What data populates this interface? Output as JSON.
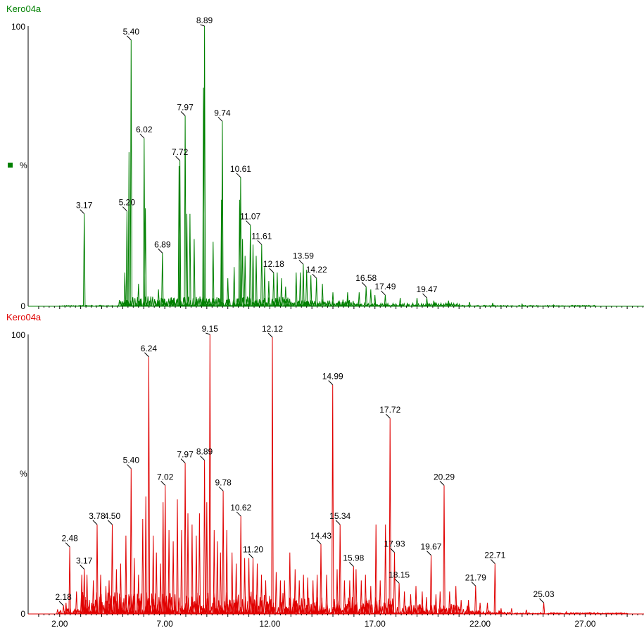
{
  "chart_data": [
    {
      "type": "line",
      "title": "Kero04a",
      "color": "#008000",
      "ylabel": "%",
      "y_ticks": [
        "100",
        "0"
      ],
      "ylim": [
        0,
        100
      ],
      "xlim": [
        0.5,
        29.8
      ],
      "peaks": [
        {
          "x": 3.17,
          "y": 33,
          "label": "3.17"
        },
        {
          "x": 5.2,
          "y": 34,
          "label": "5.20"
        },
        {
          "x": 5.4,
          "y": 95,
          "label": "5.40"
        },
        {
          "x": 6.02,
          "y": 60,
          "label": "6.02"
        },
        {
          "x": 6.89,
          "y": 19,
          "label": "6.89"
        },
        {
          "x": 7.72,
          "y": 52,
          "label": "7.72"
        },
        {
          "x": 7.97,
          "y": 68,
          "label": "7.97"
        },
        {
          "x": 8.89,
          "y": 100,
          "label": "8.89"
        },
        {
          "x": 9.74,
          "y": 66,
          "label": "9.74"
        },
        {
          "x": 10.61,
          "y": 46,
          "label": "10.61"
        },
        {
          "x": 11.07,
          "y": 29,
          "label": "11.07"
        },
        {
          "x": 11.61,
          "y": 22,
          "label": "11.61"
        },
        {
          "x": 12.18,
          "y": 12,
          "label": "12.18"
        },
        {
          "x": 13.59,
          "y": 15,
          "label": "13.59"
        },
        {
          "x": 14.22,
          "y": 10,
          "label": "14.22"
        },
        {
          "x": 16.58,
          "y": 7,
          "label": "16.58"
        },
        {
          "x": 17.49,
          "y": 4,
          "label": "17.49"
        },
        {
          "x": 19.47,
          "y": 3,
          "label": "19.47"
        }
      ],
      "minor_peaks": [
        {
          "x": 5.1,
          "y": 12
        },
        {
          "x": 5.3,
          "y": 55
        },
        {
          "x": 5.75,
          "y": 8
        },
        {
          "x": 6.08,
          "y": 35
        },
        {
          "x": 6.7,
          "y": 6
        },
        {
          "x": 7.68,
          "y": 50
        },
        {
          "x": 8.05,
          "y": 33
        },
        {
          "x": 8.2,
          "y": 33
        },
        {
          "x": 8.4,
          "y": 24
        },
        {
          "x": 8.84,
          "y": 78
        },
        {
          "x": 9.3,
          "y": 23
        },
        {
          "x": 9.7,
          "y": 38
        },
        {
          "x": 10.0,
          "y": 10
        },
        {
          "x": 10.3,
          "y": 14
        },
        {
          "x": 10.56,
          "y": 38
        },
        {
          "x": 10.7,
          "y": 24
        },
        {
          "x": 10.82,
          "y": 18
        },
        {
          "x": 11.2,
          "y": 22
        },
        {
          "x": 11.35,
          "y": 18
        },
        {
          "x": 11.75,
          "y": 14
        },
        {
          "x": 11.95,
          "y": 9
        },
        {
          "x": 12.35,
          "y": 12
        },
        {
          "x": 12.55,
          "y": 10
        },
        {
          "x": 12.75,
          "y": 7
        },
        {
          "x": 13.25,
          "y": 12
        },
        {
          "x": 13.45,
          "y": 12
        },
        {
          "x": 13.75,
          "y": 13
        },
        {
          "x": 13.95,
          "y": 11
        },
        {
          "x": 14.5,
          "y": 8
        },
        {
          "x": 15.0,
          "y": 5
        },
        {
          "x": 15.7,
          "y": 5
        },
        {
          "x": 16.25,
          "y": 5
        },
        {
          "x": 16.8,
          "y": 6
        },
        {
          "x": 17.0,
          "y": 4
        },
        {
          "x": 18.2,
          "y": 3
        },
        {
          "x": 19.0,
          "y": 3
        },
        {
          "x": 19.8,
          "y": 2
        },
        {
          "x": 20.5,
          "y": 2
        },
        {
          "x": 21.5,
          "y": 1.5
        },
        {
          "x": 22.6,
          "y": 1.2
        },
        {
          "x": 24.0,
          "y": 0.8
        },
        {
          "x": 25.5,
          "y": 0.5
        }
      ]
    },
    {
      "type": "line",
      "title": "Kero04a",
      "color": "#e00000",
      "ylabel": "%",
      "y_ticks": [
        "100",
        "0"
      ],
      "ylim": [
        0,
        100
      ],
      "xlim": [
        0.5,
        29.8
      ],
      "x_ticks": [
        "2.00",
        "7.00",
        "12.00",
        "17.00",
        "22.00",
        "27.00"
      ],
      "x_tick_values": [
        2,
        7,
        12,
        17,
        22,
        27
      ],
      "peaks": [
        {
          "x": 2.18,
          "y": 3,
          "label": "2.18"
        },
        {
          "x": 2.48,
          "y": 24,
          "label": "2.48"
        },
        {
          "x": 3.17,
          "y": 16,
          "label": "3.17"
        },
        {
          "x": 3.78,
          "y": 32,
          "label": "3.78"
        },
        {
          "x": 4.5,
          "y": 32,
          "label": "4.50"
        },
        {
          "x": 5.4,
          "y": 52,
          "label": "5.40"
        },
        {
          "x": 6.24,
          "y": 92,
          "label": "6.24"
        },
        {
          "x": 7.02,
          "y": 46,
          "label": "7.02"
        },
        {
          "x": 7.97,
          "y": 54,
          "label": "7.97"
        },
        {
          "x": 8.89,
          "y": 55,
          "label": "8.89"
        },
        {
          "x": 9.15,
          "y": 100,
          "label": "9.15"
        },
        {
          "x": 9.78,
          "y": 44,
          "label": "9.78"
        },
        {
          "x": 10.62,
          "y": 35,
          "label": "10.62"
        },
        {
          "x": 11.2,
          "y": 20,
          "label": "11.20"
        },
        {
          "x": 12.12,
          "y": 99,
          "label": "12.12"
        },
        {
          "x": 14.43,
          "y": 25,
          "label": "14.43"
        },
        {
          "x": 14.99,
          "y": 82,
          "label": "14.99"
        },
        {
          "x": 15.34,
          "y": 32,
          "label": "15.34"
        },
        {
          "x": 15.98,
          "y": 17,
          "label": "15.98"
        },
        {
          "x": 17.72,
          "y": 70,
          "label": "17.72"
        },
        {
          "x": 17.93,
          "y": 22,
          "label": "17.93"
        },
        {
          "x": 18.15,
          "y": 11,
          "label": "18.15"
        },
        {
          "x": 19.67,
          "y": 21,
          "label": "19.67"
        },
        {
          "x": 20.29,
          "y": 46,
          "label": "20.29"
        },
        {
          "x": 21.79,
          "y": 10,
          "label": "21.79"
        },
        {
          "x": 22.71,
          "y": 18,
          "label": "22.71"
        },
        {
          "x": 25.03,
          "y": 4,
          "label": "25.03"
        }
      ],
      "minor_peaks": [
        {
          "x": 2.3,
          "y": 4
        },
        {
          "x": 2.8,
          "y": 8
        },
        {
          "x": 3.05,
          "y": 14
        },
        {
          "x": 3.3,
          "y": 14
        },
        {
          "x": 3.6,
          "y": 12
        },
        {
          "x": 3.95,
          "y": 14
        },
        {
          "x": 4.2,
          "y": 10
        },
        {
          "x": 4.35,
          "y": 12
        },
        {
          "x": 4.7,
          "y": 16
        },
        {
          "x": 4.9,
          "y": 18
        },
        {
          "x": 5.15,
          "y": 28
        },
        {
          "x": 5.55,
          "y": 20
        },
        {
          "x": 5.75,
          "y": 14
        },
        {
          "x": 5.95,
          "y": 34
        },
        {
          "x": 6.1,
          "y": 42
        },
        {
          "x": 6.45,
          "y": 28
        },
        {
          "x": 6.6,
          "y": 22
        },
        {
          "x": 6.8,
          "y": 18
        },
        {
          "x": 6.92,
          "y": 40
        },
        {
          "x": 7.2,
          "y": 30
        },
        {
          "x": 7.4,
          "y": 26
        },
        {
          "x": 7.6,
          "y": 41
        },
        {
          "x": 7.8,
          "y": 30
        },
        {
          "x": 8.1,
          "y": 36
        },
        {
          "x": 8.3,
          "y": 32
        },
        {
          "x": 8.5,
          "y": 28
        },
        {
          "x": 8.65,
          "y": 36
        },
        {
          "x": 9.0,
          "y": 40
        },
        {
          "x": 9.35,
          "y": 30
        },
        {
          "x": 9.5,
          "y": 26
        },
        {
          "x": 9.65,
          "y": 22
        },
        {
          "x": 9.95,
          "y": 30
        },
        {
          "x": 10.2,
          "y": 22
        },
        {
          "x": 10.4,
          "y": 18
        },
        {
          "x": 10.8,
          "y": 20
        },
        {
          "x": 11.0,
          "y": 20
        },
        {
          "x": 11.4,
          "y": 18
        },
        {
          "x": 11.6,
          "y": 14
        },
        {
          "x": 11.8,
          "y": 12
        },
        {
          "x": 12.3,
          "y": 15
        },
        {
          "x": 12.5,
          "y": 12
        },
        {
          "x": 12.7,
          "y": 12
        },
        {
          "x": 12.95,
          "y": 22
        },
        {
          "x": 13.2,
          "y": 16
        },
        {
          "x": 13.4,
          "y": 12
        },
        {
          "x": 13.6,
          "y": 14
        },
        {
          "x": 13.8,
          "y": 13
        },
        {
          "x": 14.05,
          "y": 12
        },
        {
          "x": 14.25,
          "y": 14
        },
        {
          "x": 14.7,
          "y": 14
        },
        {
          "x": 15.2,
          "y": 16
        },
        {
          "x": 15.55,
          "y": 12
        },
        {
          "x": 15.8,
          "y": 12
        },
        {
          "x": 16.1,
          "y": 16
        },
        {
          "x": 16.35,
          "y": 12
        },
        {
          "x": 16.55,
          "y": 14
        },
        {
          "x": 16.8,
          "y": 10
        },
        {
          "x": 17.05,
          "y": 32
        },
        {
          "x": 17.25,
          "y": 12
        },
        {
          "x": 17.5,
          "y": 32
        },
        {
          "x": 18.4,
          "y": 8
        },
        {
          "x": 18.7,
          "y": 7
        },
        {
          "x": 18.95,
          "y": 10
        },
        {
          "x": 19.25,
          "y": 8
        },
        {
          "x": 19.45,
          "y": 6
        },
        {
          "x": 19.9,
          "y": 7
        },
        {
          "x": 20.1,
          "y": 8
        },
        {
          "x": 20.55,
          "y": 8
        },
        {
          "x": 20.85,
          "y": 10
        },
        {
          "x": 21.1,
          "y": 5
        },
        {
          "x": 21.45,
          "y": 5
        },
        {
          "x": 22.0,
          "y": 4
        },
        {
          "x": 22.35,
          "y": 4
        },
        {
          "x": 23.0,
          "y": 2
        },
        {
          "x": 23.5,
          "y": 2
        },
        {
          "x": 24.2,
          "y": 1.5
        },
        {
          "x": 26.1,
          "y": 0.8
        },
        {
          "x": 27.2,
          "y": 0.5
        }
      ]
    }
  ]
}
